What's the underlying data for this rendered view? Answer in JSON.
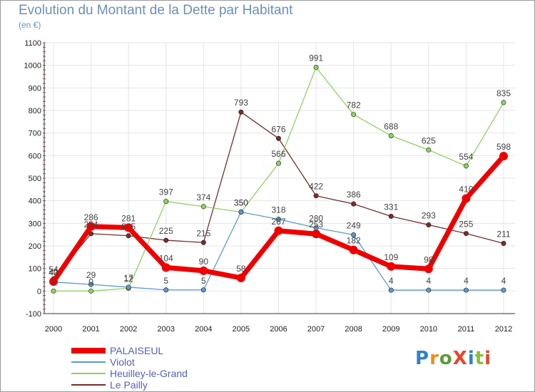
{
  "title": "Evolution du Montant de la Dette par Habitant",
  "unit": "(en €)",
  "logo": {
    "text": "ProXiti",
    "letter_colors": [
      "#2f82c8",
      "#f28c1b",
      "#5b9b3a",
      "#e8452c",
      "#2f82c8",
      "#8bbd3a",
      "#e8452c"
    ]
  },
  "chart_data": {
    "type": "line",
    "title": "Evolution du Montant de la Dette par Habitant",
    "ylabel": "(en €)",
    "xlabel": "",
    "ylim": [
      -100,
      1100
    ],
    "yticks": [
      -100,
      0,
      100,
      200,
      300,
      400,
      500,
      600,
      700,
      800,
      900,
      1000,
      1100
    ],
    "categories": [
      "2000",
      "2001",
      "2002",
      "2003",
      "2004",
      "2005",
      "2006",
      "2007",
      "2008",
      "2009",
      "2010",
      "2011",
      "2012"
    ],
    "grid": true,
    "legend_position": "bottom-left",
    "series": [
      {
        "name": "PALAISEUL",
        "color": "#ee0000",
        "values": [
          42,
          286,
          281,
          104,
          90,
          58,
          267,
          253,
          182,
          109,
          98,
          410,
          598
        ]
      },
      {
        "name": "Violot",
        "color": "#5a9ad0",
        "values": [
          40,
          29,
          17,
          5,
          5,
          350,
          318,
          280,
          249,
          4,
          4,
          4,
          4
        ]
      },
      {
        "name": "Heuilley-le-Grand",
        "color": "#8dd35e",
        "values": [
          0,
          0,
          12,
          397,
          374,
          350,
          566,
          991,
          782,
          688,
          625,
          554,
          835
        ]
      },
      {
        "name": "Le Pailly",
        "color": "#7a2b2b",
        "values": [
          54,
          254,
          245,
          225,
          215,
          793,
          676,
          422,
          386,
          331,
          293,
          255,
          211
        ]
      }
    ]
  }
}
